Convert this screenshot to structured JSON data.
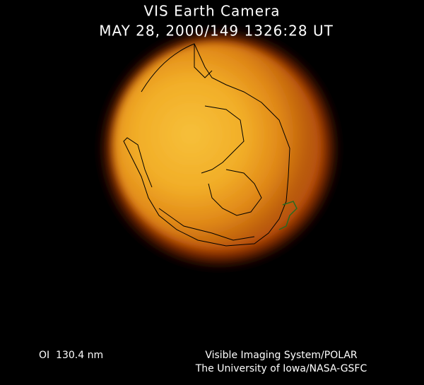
{
  "header": {
    "title": "VIS Earth Camera",
    "timestamp": "MAY 28, 2000/149 1326:28 UT"
  },
  "footer": {
    "wavelength": "OI  130.4 nm",
    "instrument": "Visible Imaging System/POLAR",
    "institution": "The University of Iowa/NASA-GSFC"
  }
}
